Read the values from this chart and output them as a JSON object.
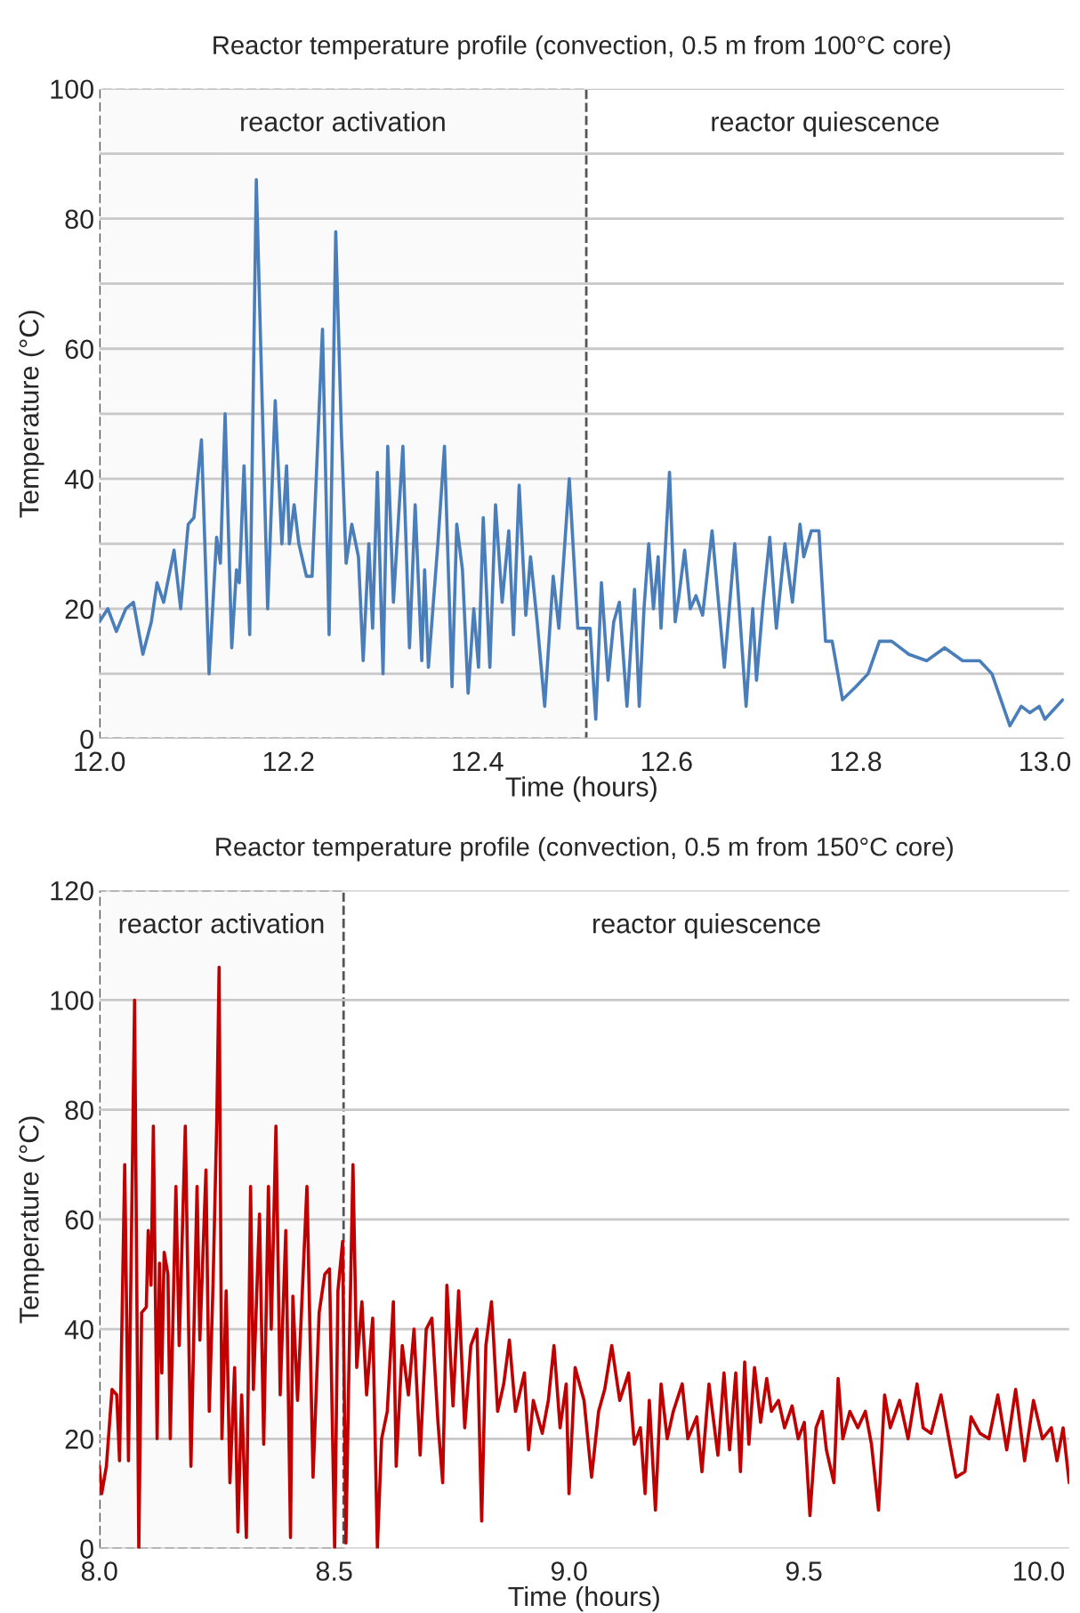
{
  "chart_data": [
    {
      "type": "line",
      "title": "Reactor temperature profile (convection, 0.5 m from 100°C core)",
      "xlabel": "Time (hours)",
      "ylabel": "Temperature (°C)",
      "xlim": [
        12.0,
        13.02
      ],
      "xticks": [
        {
          "value": 12.0,
          "label": "12.0"
        },
        12.2,
        12.4,
        12.6,
        12.8,
        {
          "value": 13.0,
          "label": "13.0"
        }
      ],
      "ylim": [
        0,
        100
      ],
      "yticks": [
        0,
        {
          "value": 10,
          "label": null
        },
        20,
        {
          "value": 30,
          "label": null
        },
        40,
        {
          "value": 50,
          "label": null
        },
        60,
        {
          "value": 70,
          "label": null
        },
        80,
        {
          "value": 90,
          "label": null
        },
        100
      ],
      "grid": "y",
      "line_style": "solid",
      "bands": [
        {
          "axis": "x",
          "from": 12.0,
          "to": 12.515,
          "label": "reactor activation",
          "color": "#fafafa"
        }
      ],
      "annotations": [
        "reactor quiescence"
      ],
      "series": [
        {
          "color": "#4a7ebb",
          "x": [
            12.0,
            12.009,
            12.018,
            12.028,
            12.036,
            12.046,
            12.055,
            12.061,
            12.068,
            12.079,
            12.086,
            12.094,
            12.1,
            12.108,
            12.116,
            12.124,
            12.128,
            12.133,
            12.14,
            12.145,
            12.148,
            12.153,
            12.159,
            12.166,
            12.178,
            12.186,
            12.193,
            12.198,
            12.201,
            12.206,
            12.211,
            12.219,
            12.225,
            12.236,
            12.243,
            12.25,
            12.256,
            12.261,
            12.267,
            12.274,
            12.279,
            12.285,
            12.289,
            12.294,
            12.3,
            12.305,
            12.311,
            12.321,
            12.328,
            12.334,
            12.341,
            12.344,
            12.348,
            12.358,
            12.365,
            12.373,
            12.378,
            12.384,
            12.39,
            12.396,
            12.401,
            12.406,
            12.413,
            12.419,
            12.426,
            12.433,
            12.438,
            12.444,
            12.451,
            12.456,
            12.463,
            12.471,
            12.48,
            12.486,
            12.497,
            12.506,
            12.519,
            12.525,
            12.531,
            12.538,
            12.544,
            12.55,
            12.558,
            12.566,
            12.571,
            12.576,
            12.581,
            12.586,
            12.591,
            12.594,
            12.603,
            12.609,
            12.613,
            12.619,
            12.625,
            12.631,
            12.638,
            12.648,
            12.661,
            12.672,
            12.684,
            12.691,
            12.695,
            12.702,
            12.709,
            12.716,
            12.725,
            12.733,
            12.741,
            12.745,
            12.753,
            12.761,
            12.768,
            12.775,
            12.786,
            12.8,
            12.813,
            12.825,
            12.838,
            12.856,
            12.875,
            12.894,
            12.913,
            12.931,
            12.944,
            12.963,
            12.975,
            12.984,
            12.994,
            13.0,
            13.019
          ],
          "values": [
            18,
            20,
            16.5,
            20,
            21,
            13,
            18,
            24,
            21,
            29,
            20,
            33,
            34,
            46,
            10,
            31,
            27,
            50,
            14,
            26,
            24,
            42,
            16,
            86,
            20,
            52,
            30,
            42,
            30,
            36,
            30,
            25,
            25,
            63,
            16,
            78,
            47,
            27,
            33,
            28,
            12,
            30,
            17,
            41,
            10,
            45,
            21,
            45,
            14,
            36,
            12,
            26,
            11,
            30,
            45,
            8,
            33,
            26,
            7,
            20,
            11,
            34,
            11,
            36,
            21,
            32,
            16,
            39,
            19,
            28,
            18,
            5,
            25,
            17,
            40,
            17,
            17,
            3,
            24,
            9,
            18,
            21,
            5,
            23,
            5,
            20,
            30,
            20,
            28,
            17,
            41,
            18,
            22,
            29,
            20,
            22,
            19,
            32,
            11,
            30,
            5,
            20,
            9,
            21,
            31,
            17,
            30,
            21,
            33,
            28,
            32,
            32,
            15,
            15,
            6,
            8,
            10,
            15,
            15,
            13,
            12,
            14,
            12,
            12,
            10,
            2,
            5,
            4,
            5,
            3,
            6
          ]
        }
      ]
    },
    {
      "type": "line",
      "title": "Reactor temperature profile (convection, 0.5 m from 150°C core)",
      "xlabel": "Time (hours)",
      "ylabel": "Temperature (°C)",
      "xlim": [
        8.0,
        10.065
      ],
      "xticks": [
        {
          "value": 8.0,
          "label": "8.0"
        },
        8.5,
        {
          "value": 9.0,
          "label": "9.0"
        },
        9.5,
        {
          "value": 10.0,
          "label": "10.0"
        }
      ],
      "ylim": [
        0,
        120
      ],
      "yticks": [
        0,
        20,
        40,
        60,
        80,
        100,
        120
      ],
      "grid": "y",
      "line_style": "solid",
      "bands": [
        {
          "axis": "x",
          "from": 8.0,
          "to": 8.52,
          "label": "reactor activation",
          "color": "#fafafa"
        }
      ],
      "annotations": [
        "reactor quiescence"
      ],
      "series": [
        {
          "color": "#c00000",
          "x": [
            8.0,
            8.005,
            8.015,
            8.027,
            8.037,
            8.043,
            8.054,
            8.062,
            8.075,
            8.084,
            8.09,
            8.1,
            8.104,
            8.11,
            8.115,
            8.123,
            8.128,
            8.133,
            8.138,
            8.146,
            8.151,
            8.163,
            8.17,
            8.183,
            8.195,
            8.208,
            8.214,
            8.227,
            8.234,
            8.242,
            8.25,
            8.255,
            8.261,
            8.27,
            8.278,
            8.288,
            8.295,
            8.303,
            8.313,
            8.322,
            8.328,
            8.341,
            8.35,
            8.36,
            8.366,
            8.376,
            8.385,
            8.397,
            8.407,
            8.412,
            8.422,
            8.442,
            8.455,
            8.468,
            8.48,
            8.49,
            8.501,
            8.508,
            8.518,
            8.525,
            8.531,
            8.54,
            8.548,
            8.559,
            8.569,
            8.582,
            8.592,
            8.601,
            8.613,
            8.626,
            8.632,
            8.645,
            8.658,
            8.67,
            8.683,
            8.696,
            8.708,
            8.721,
            8.731,
            8.74,
            8.753,
            8.765,
            8.778,
            8.791,
            8.804,
            8.814,
            8.823,
            8.835,
            8.848,
            8.861,
            8.873,
            8.886,
            8.905,
            8.914,
            8.924,
            8.943,
            8.956,
            8.968,
            8.981,
            8.994,
            9.0,
            9.013,
            9.032,
            9.048,
            9.063,
            9.076,
            9.091,
            9.108,
            9.127,
            9.139,
            9.152,
            9.162,
            9.171,
            9.184,
            9.196,
            9.209,
            9.222,
            9.241,
            9.253,
            9.272,
            9.283,
            9.298,
            9.317,
            9.33,
            9.342,
            9.355,
            9.365,
            9.374,
            9.383,
            9.395,
            9.408,
            9.421,
            9.431,
            9.446,
            9.459,
            9.475,
            9.488,
            9.501,
            9.513,
            9.526,
            9.539,
            9.548,
            9.564,
            9.573,
            9.583,
            9.598,
            9.615,
            9.631,
            9.644,
            9.659,
            9.672,
            9.684,
            9.704,
            9.722,
            9.741,
            9.754,
            9.771,
            9.792,
            9.811,
            9.824,
            9.843,
            9.856,
            9.875,
            9.894,
            9.913,
            9.932,
            9.951,
            9.97,
            9.989,
            10.008,
            10.027,
            10.039,
            10.052,
            10.065
          ],
          "values": [
            15,
            10,
            15,
            29,
            28,
            16,
            70,
            16,
            100,
            0,
            43,
            44,
            58,
            48,
            77,
            20,
            52,
            32,
            54,
            50,
            20,
            66,
            37,
            77,
            15,
            66,
            38,
            69,
            25,
            48,
            78,
            106,
            20,
            47,
            12,
            33,
            3,
            28,
            2,
            66,
            29,
            61,
            19,
            66,
            40,
            77,
            28,
            58,
            2,
            46,
            27,
            66,
            13,
            43,
            50,
            51,
            0,
            47,
            56,
            1,
            31,
            70,
            33,
            45,
            28,
            42,
            0,
            20,
            25,
            45,
            15,
            37,
            28,
            40,
            17,
            40,
            42,
            23,
            12,
            48,
            26,
            47,
            22,
            37,
            40,
            5,
            37,
            45,
            25,
            30,
            38,
            25,
            32,
            18,
            27,
            21,
            27,
            37,
            22,
            30,
            10,
            33,
            27,
            13,
            25,
            29,
            37,
            27,
            32,
            19,
            22,
            10,
            27,
            7,
            30,
            20,
            25,
            30,
            20,
            24,
            14,
            30,
            17,
            32,
            18,
            32,
            14,
            34,
            19,
            33,
            23,
            31,
            25,
            27,
            22,
            26,
            20,
            23,
            6,
            22,
            25,
            18,
            12,
            31,
            20,
            25,
            22,
            25,
            19,
            7,
            28,
            22,
            27,
            20,
            30,
            22,
            21,
            28,
            19,
            13,
            14,
            24,
            21,
            20,
            28,
            18,
            29,
            16,
            27,
            20,
            22,
            16,
            22,
            12
          ]
        }
      ]
    }
  ]
}
